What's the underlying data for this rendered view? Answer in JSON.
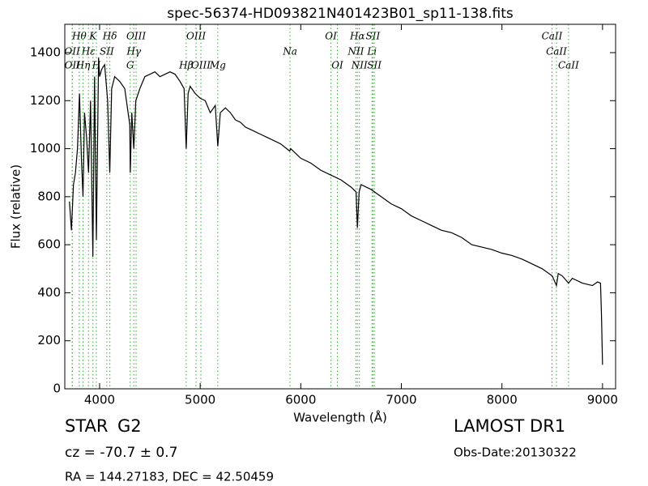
{
  "chart_data": {
    "type": "line",
    "title": "spec-56374-HD093821N401423B01_sp11-138.fits",
    "x_label": "Wavelength (Å)",
    "y_label": "Flux (relative)",
    "x": [
      3700,
      3720,
      3740,
      3760,
      3780,
      3800,
      3820,
      3835,
      3850,
      3870,
      3890,
      3910,
      3933,
      3950,
      3968,
      3990,
      4000,
      4020,
      4050,
      4080,
      4101,
      4120,
      4150,
      4200,
      4250,
      4300,
      4305,
      4320,
      4340,
      4360,
      4400,
      4450,
      4500,
      4550,
      4600,
      4650,
      4700,
      4750,
      4800,
      4840,
      4861,
      4880,
      4900,
      4950,
      5000,
      5050,
      5100,
      5150,
      5175,
      5200,
      5250,
      5300,
      5350,
      5400,
      5450,
      5500,
      5600,
      5700,
      5800,
      5890,
      5900,
      6000,
      6100,
      6200,
      6300,
      6400,
      6500,
      6550,
      6563,
      6580,
      6600,
      6700,
      6800,
      6900,
      7000,
      7100,
      7200,
      7300,
      7400,
      7500,
      7600,
      7700,
      7800,
      7900,
      8000,
      8100,
      8200,
      8300,
      8400,
      8500,
      8542,
      8560,
      8600,
      8662,
      8700,
      8800,
      8900,
      8950,
      8980,
      8990,
      9000
    ],
    "series": [
      {
        "color": "#000000",
        "values": [
          780,
          660,
          850,
          900,
          1000,
          1230,
          950,
          800,
          1150,
          1050,
          900,
          1200,
          550,
          1300,
          620,
          1380,
          1300,
          1330,
          1350,
          1200,
          900,
          1250,
          1300,
          1280,
          1250,
          1100,
          900,
          1150,
          1000,
          1200,
          1250,
          1300,
          1310,
          1320,
          1300,
          1310,
          1320,
          1310,
          1280,
          1250,
          1000,
          1230,
          1260,
          1230,
          1210,
          1200,
          1150,
          1180,
          1010,
          1150,
          1170,
          1150,
          1120,
          1110,
          1090,
          1080,
          1060,
          1040,
          1020,
          990,
          1000,
          960,
          940,
          910,
          890,
          870,
          840,
          820,
          670,
          820,
          850,
          830,
          800,
          770,
          750,
          720,
          700,
          680,
          660,
          650,
          630,
          600,
          590,
          580,
          565,
          555,
          540,
          520,
          500,
          470,
          430,
          480,
          470,
          440,
          460,
          440,
          430,
          445,
          440,
          300,
          100
        ]
      }
    ],
    "xlim": [
      3654,
      9130
    ],
    "ylim": [
      0,
      1518
    ],
    "xticks": [
      4000,
      5000,
      6000,
      7000,
      8000,
      9000
    ],
    "yticks": [
      0,
      200,
      400,
      600,
      800,
      1000,
      1200,
      1400
    ],
    "line_color": "#33aa33",
    "lines": [
      {
        "name": "Hθ",
        "wavelength": 3798
      },
      {
        "name": "K",
        "wavelength": 3934
      },
      {
        "name": "Hδ",
        "wavelength": 4102
      },
      {
        "name": "OIII",
        "wavelength": 4363
      },
      {
        "name": "OIII",
        "wavelength": 4959
      },
      {
        "name": "OI",
        "wavelength": 6300
      },
      {
        "name": "Hα",
        "wavelength": 6563
      },
      {
        "name": "SII",
        "wavelength": 6717
      },
      {
        "name": "CaII",
        "wavelength": 8498
      },
      {
        "name": "OII",
        "wavelength": 3727
      },
      {
        "name": "Hε",
        "wavelength": 3889
      },
      {
        "name": "SII",
        "wavelength": 4072
      },
      {
        "name": "Hγ",
        "wavelength": 4340
      },
      {
        "name": "Na",
        "wavelength": 5893
      },
      {
        "name": "NII",
        "wavelength": 6548
      },
      {
        "name": "Li",
        "wavelength": 6708
      },
      {
        "name": "CaII",
        "wavelength": 8542
      },
      {
        "name": "OII",
        "wavelength": 3729
      },
      {
        "name": "Hη",
        "wavelength": 3835
      },
      {
        "name": "H",
        "wavelength": 3968
      },
      {
        "name": "G",
        "wavelength": 4304
      },
      {
        "name": "Hβ",
        "wavelength": 4861
      },
      {
        "name": "OIII",
        "wavelength": 5007
      },
      {
        "name": "Mg",
        "wavelength": 5175
      },
      {
        "name": "OI",
        "wavelength": 6364
      },
      {
        "name": "NII",
        "wavelength": 6583
      },
      {
        "name": "SII",
        "wavelength": 6731
      },
      {
        "name": "CaII",
        "wavelength": 8662
      }
    ],
    "footer": {
      "class": "STAR",
      "subclass": "G2",
      "survey": "LAMOST DR1",
      "cz": "cz = -70.7 ± 0.7",
      "obs_date": "Obs-Date:20130322",
      "coords": "RA = 144.27183, DEC = 42.50459"
    }
  }
}
